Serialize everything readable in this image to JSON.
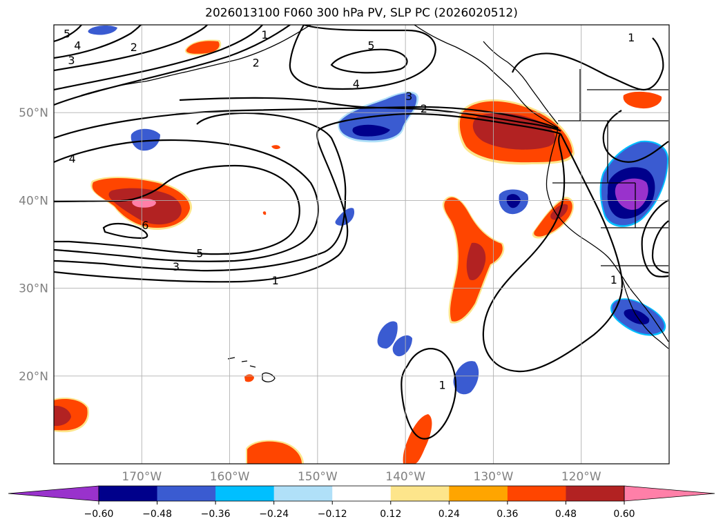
{
  "title": "2026013100 F060 300 hPa PV, SLP PC (2026020512)",
  "map": {
    "lon_range": [
      -180,
      -110
    ],
    "lat_range": [
      10,
      60
    ],
    "lat_ticks": [
      {
        "value": 20,
        "label": "20°N"
      },
      {
        "value": 30,
        "label": "30°N"
      },
      {
        "value": 40,
        "label": "40°N"
      },
      {
        "value": 50,
        "label": "50°N"
      }
    ],
    "lon_ticks": [
      {
        "value": -170,
        "label": "170°W"
      },
      {
        "value": -160,
        "label": "160°W"
      },
      {
        "value": -150,
        "label": "150°W"
      },
      {
        "value": -140,
        "label": "140°W"
      },
      {
        "value": -130,
        "label": "130°W"
      },
      {
        "value": -120,
        "label": "120°W"
      }
    ],
    "grid": true
  },
  "contour_labels": [
    {
      "text": "5",
      "lon": -178.5,
      "lat": 59.0
    },
    {
      "text": "4",
      "lon": -177.3,
      "lat": 57.7
    },
    {
      "text": "3",
      "lon": -178.0,
      "lat": 56.0
    },
    {
      "text": "2",
      "lon": -170.9,
      "lat": 57.5
    },
    {
      "text": "2",
      "lon": -157.0,
      "lat": 55.7
    },
    {
      "text": "1",
      "lon": -156.0,
      "lat": 58.9
    },
    {
      "text": "5",
      "lon": -143.9,
      "lat": 57.7
    },
    {
      "text": "4",
      "lon": -145.6,
      "lat": 53.3
    },
    {
      "text": "3",
      "lon": -139.6,
      "lat": 51.9
    },
    {
      "text": "2",
      "lon": -137.9,
      "lat": 50.5
    },
    {
      "text": "4",
      "lon": -177.9,
      "lat": 44.8
    },
    {
      "text": "6",
      "lon": -169.6,
      "lat": 37.2
    },
    {
      "text": "5",
      "lon": -163.4,
      "lat": 34.0
    },
    {
      "text": "3",
      "lon": -166.1,
      "lat": 32.5
    },
    {
      "text": "1",
      "lon": -154.8,
      "lat": 30.9
    },
    {
      "text": "1",
      "lon": -114.3,
      "lat": 58.6
    },
    {
      "text": "1",
      "lon": -116.3,
      "lat": 31.0
    },
    {
      "text": "1",
      "lon": -135.8,
      "lat": 19.0
    }
  ],
  "colorbar": {
    "levels": [
      -0.6,
      -0.48,
      -0.36,
      -0.24,
      -0.12,
      0.12,
      0.24,
      0.36,
      0.48,
      0.6
    ],
    "tick_labels": [
      "−0.60",
      "−0.48",
      "−0.36",
      "−0.24",
      "−0.12",
      "0.12",
      "0.24",
      "0.36",
      "0.48",
      "0.60"
    ],
    "colors": [
      "#9932cc",
      "#00008b",
      "#3a5bd1",
      "#00bfff",
      "#b0e0f8",
      "#ffffff",
      "#fde58b",
      "#ffa500",
      "#ff4500",
      "#b22222",
      "#ff7fa8"
    ]
  }
}
